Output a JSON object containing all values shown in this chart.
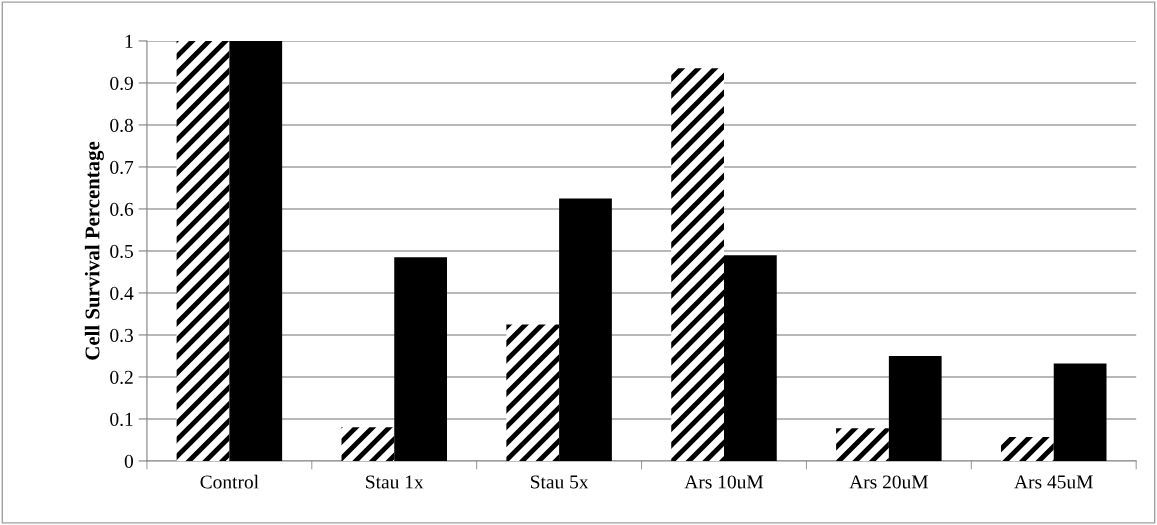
{
  "chart_data": {
    "type": "bar",
    "ylabel": "Cell Survival Percentage",
    "categories": [
      "Control",
      "Stau 1x",
      "Stau 5x",
      "Ars 10uM",
      "Ars 20uM",
      "Ars 45uM"
    ],
    "series": [
      {
        "color": "#000000",
        "values": [
          1.0,
          0.08,
          0.325,
          0.935,
          0.078,
          0.057
        ]
      },
      {
        "color": "#000000",
        "values": [
          1.0,
          0.485,
          0.625,
          0.49,
          0.25,
          0.232
        ]
      }
    ],
    "ylim": [
      0,
      1
    ],
    "yticks": [
      0,
      0.1,
      0.2,
      0.3,
      0.4,
      0.5,
      0.6,
      0.7,
      0.8,
      0.9,
      1
    ],
    "grid": "y",
    "legend": false
  }
}
